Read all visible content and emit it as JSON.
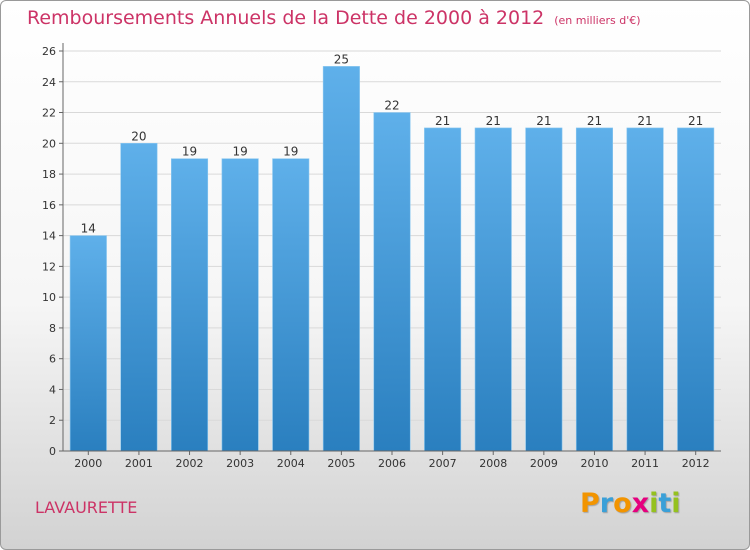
{
  "title": "Remboursements Annuels de la Dette de 2000 à 2012",
  "subtitle": "(en milliers d'€)",
  "place_name": "LAVAURETTE",
  "logo": {
    "text": "Proxiti",
    "letters": [
      {
        "ch": "P",
        "color": "#f29400"
      },
      {
        "ch": "r",
        "color": "#3aa0d8"
      },
      {
        "ch": "o",
        "color": "#f29400"
      },
      {
        "ch": "x",
        "color": "#e5007e"
      },
      {
        "ch": "i",
        "color": "#95c11f"
      },
      {
        "ch": "t",
        "color": "#3aa0d8"
      },
      {
        "ch": "i",
        "color": "#95c11f"
      }
    ]
  },
  "colors": {
    "title": "#cc3366",
    "bar_top": "#5fb0ea",
    "bar_bottom": "#2a7fbf",
    "grid": "#d9d9d9"
  },
  "chart_data": {
    "type": "bar",
    "categories": [
      "2000",
      "2001",
      "2002",
      "2003",
      "2004",
      "2005",
      "2006",
      "2007",
      "2008",
      "2009",
      "2010",
      "2011",
      "2012"
    ],
    "values": [
      14,
      20,
      19,
      19,
      19,
      25,
      22,
      21,
      21,
      21,
      21,
      21,
      21
    ],
    "data_labels": [
      "14",
      "20",
      "19",
      "19",
      "19",
      "25",
      "22",
      "21",
      "21",
      "21",
      "21",
      "21",
      "21"
    ],
    "yticks": [
      0,
      2,
      4,
      6,
      8,
      10,
      12,
      14,
      16,
      18,
      20,
      22,
      24,
      26
    ],
    "ylim": [
      0,
      26
    ],
    "grid": true,
    "legend": "none"
  }
}
